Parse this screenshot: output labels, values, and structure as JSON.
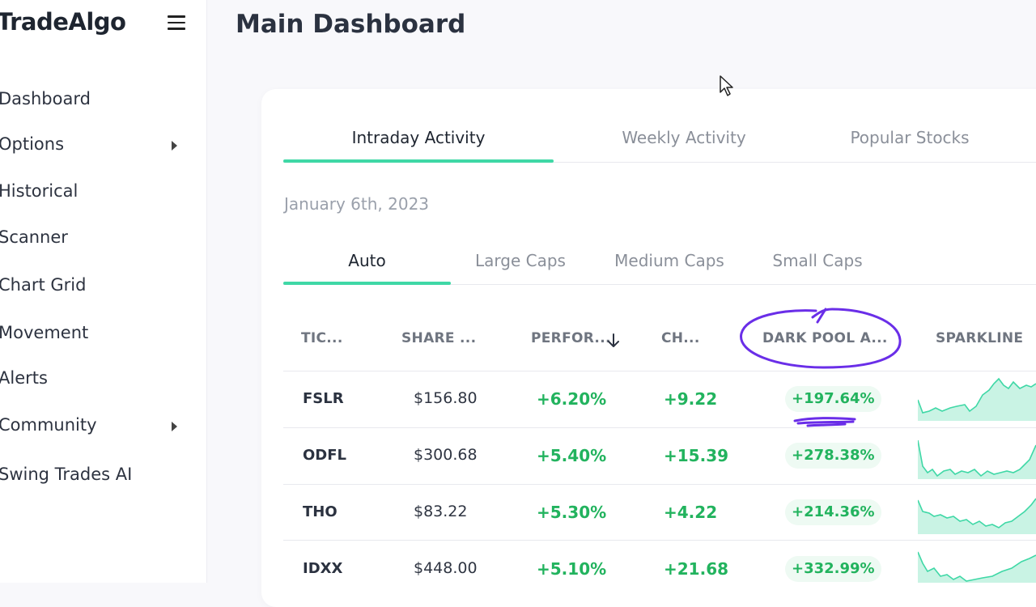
{
  "app": {
    "logo": "TradeAlgo"
  },
  "sidebar": {
    "items": [
      {
        "label": "Dashboard",
        "has_submenu": false
      },
      {
        "label": "Options",
        "has_submenu": true
      },
      {
        "label": "Historical",
        "has_submenu": false
      },
      {
        "label": "Scanner",
        "has_submenu": false
      },
      {
        "label": "Chart Grid",
        "has_submenu": false
      },
      {
        "label": "Movement",
        "has_submenu": false
      },
      {
        "label": "Alerts",
        "has_submenu": false
      },
      {
        "label": "Community",
        "has_submenu": true
      },
      {
        "label": "Swing Trades AI",
        "has_submenu": false
      }
    ]
  },
  "header": {
    "title": "Main Dashboard"
  },
  "main": {
    "tabs": [
      {
        "label": "Intraday Activity",
        "active": true
      },
      {
        "label": "Weekly Activity",
        "active": false
      },
      {
        "label": "Popular Stocks",
        "active": false
      }
    ],
    "date": "January 6th, 2023",
    "subtabs": [
      {
        "label": "Auto",
        "active": true
      },
      {
        "label": "Large Caps",
        "active": false
      },
      {
        "label": "Medium Caps",
        "active": false
      },
      {
        "label": "Small Caps",
        "active": false
      }
    ],
    "table": {
      "columns": [
        "TIC...",
        "SHARE ...",
        "PERFOR...",
        "CH...",
        "DARK POOL A...",
        "SPARKLINE"
      ],
      "sort_column": "PERFOR...",
      "sort_direction": "descending",
      "rows": [
        {
          "ticker": "FSLR",
          "price": "$156.80",
          "performance": "+6.20%",
          "change": "+9.22",
          "dark_pool": "+197.64%"
        },
        {
          "ticker": "ODFL",
          "price": "$300.68",
          "performance": "+5.40%",
          "change": "+15.39",
          "dark_pool": "+278.38%"
        },
        {
          "ticker": "THO",
          "price": "$83.22",
          "performance": "+5.30%",
          "change": "+4.22",
          "dark_pool": "+214.36%"
        },
        {
          "ticker": "IDXX",
          "price": "$448.00",
          "performance": "+5.10%",
          "change": "+21.68",
          "dark_pool": "+332.99%"
        }
      ]
    }
  },
  "colors": {
    "accent": "#3fd8a6",
    "positive": "#22b35e",
    "annotation": "#6a2ee8"
  },
  "icons": {
    "menu": "hamburger-icon",
    "submenu": "caret-right-icon",
    "sort": "arrow-down-icon"
  }
}
